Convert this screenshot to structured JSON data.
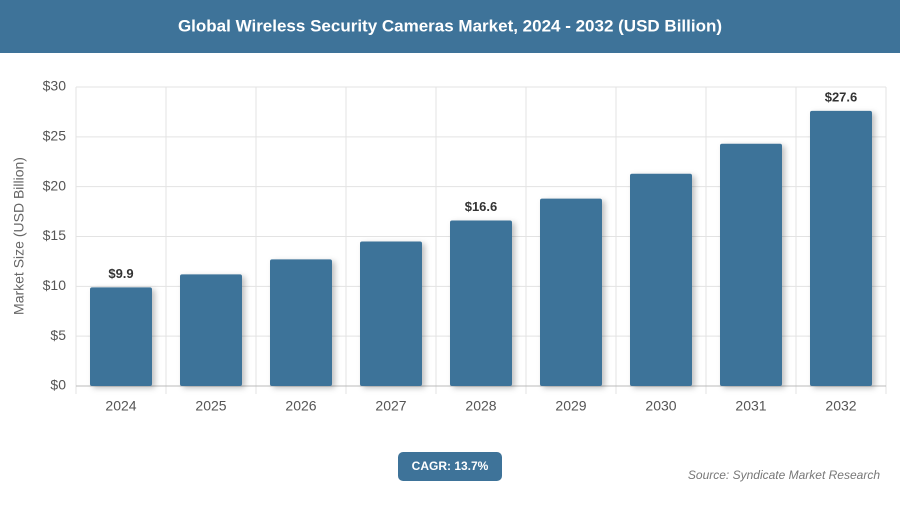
{
  "chart_data": {
    "type": "bar",
    "title": "Global Wireless Security Cameras Market, 2024 - 2032 (USD Billion)",
    "y_label": "Market Size (USD Billion)",
    "categories": [
      "2024",
      "2025",
      "2026",
      "2027",
      "2028",
      "2029",
      "2030",
      "2031",
      "2032"
    ],
    "values": [
      9.9,
      11.2,
      12.7,
      14.5,
      16.6,
      18.8,
      21.3,
      24.3,
      27.6
    ],
    "value_labels": [
      "$9.9",
      null,
      null,
      null,
      "$16.6",
      null,
      null,
      null,
      "$27.6"
    ],
    "color": "#3e7399",
    "ylim": [
      0,
      30
    ],
    "yticks": [
      {
        "value": 0,
        "label": "$0"
      },
      {
        "value": 5,
        "label": "$5"
      },
      {
        "value": 10,
        "label": "$10"
      },
      {
        "value": 15,
        "label": "$15"
      },
      {
        "value": 20,
        "label": "$20"
      },
      {
        "value": 25,
        "label": "$25"
      },
      {
        "value": 30,
        "label": "$30"
      }
    ],
    "grid": true,
    "badge": "CAGR: 13.7%",
    "source": "Source: Syndicate Market Research"
  }
}
